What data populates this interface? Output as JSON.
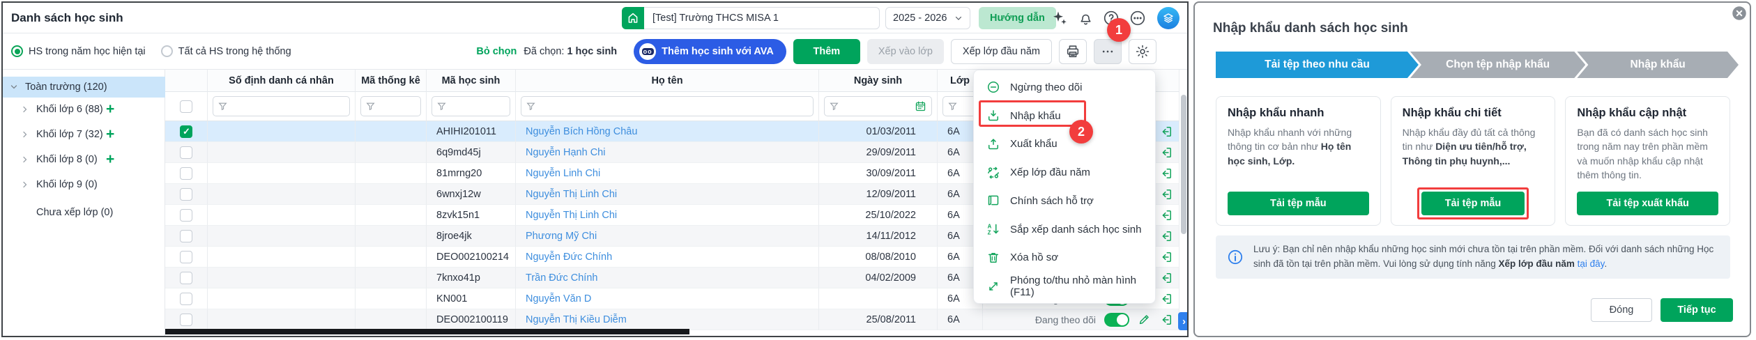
{
  "page_title": "Danh sách học sinh",
  "header": {
    "school": "[Test] Trường THCS MISA 1",
    "year": "2025 - 2026",
    "guide_button": "Hướng dẫn",
    "annotation_step1": "1"
  },
  "toolbar": {
    "radio_current_year": "HS trong năm học hiện tại",
    "radio_all_system": "Tất cả HS trong hệ thống",
    "deselect_link": "Bỏ chọn",
    "selected_label": "Đã chọn:",
    "selected_count": "1 học sinh",
    "ava_button": "Thêm học sinh với AVA",
    "add_button": "Thêm",
    "assign_class_button": "Xếp vào lớp",
    "start_year_button": "Xếp lớp đầu năm"
  },
  "sidebar": {
    "items": [
      {
        "label": "Toàn trường (120)"
      },
      {
        "label": "Khối lớp 6 (88)"
      },
      {
        "label": "Khối lớp 7 (32)"
      },
      {
        "label": "Khối lớp 8 (0)"
      },
      {
        "label": "Khối lớp 9 (0)"
      },
      {
        "label": "Chưa xếp lớp (0)"
      }
    ]
  },
  "table": {
    "columns": {
      "so_dinh_danh": "Số định danh cá nhân",
      "ma_thong_ke": "Mã thống kê",
      "ma_hoc_sinh": "Mã học sinh",
      "ho_ten": "Họ tên",
      "ngay_sinh": "Ngày sinh",
      "lop": "Lớp"
    },
    "rows": [
      {
        "so_dinh_danh": "",
        "ma_thong_ke": "",
        "ma_hoc_sinh": "AHIHI201011",
        "ho_ten": "Nguyễn Bích Hồng Châu",
        "ngay_sinh": "01/03/2011",
        "lop": "6A",
        "status": "Đang theo dõi",
        "selected": true,
        "checked": true
      },
      {
        "so_dinh_danh": "",
        "ma_thong_ke": "",
        "ma_hoc_sinh": "6q9md45j",
        "ho_ten": "Nguyễn Hạnh Chi",
        "ngay_sinh": "29/09/2011",
        "lop": "6A",
        "status": "Đang theo dõi"
      },
      {
        "so_dinh_danh": "",
        "ma_thong_ke": "",
        "ma_hoc_sinh": "81mrng20",
        "ho_ten": "Nguyễn Linh Chi",
        "ngay_sinh": "30/09/2011",
        "lop": "6A",
        "status": "Đang theo dõi"
      },
      {
        "so_dinh_danh": "",
        "ma_thong_ke": "",
        "ma_hoc_sinh": "6wnxj12w",
        "ho_ten": "Nguyễn Thị Linh Chi",
        "ngay_sinh": "12/09/2011",
        "lop": "6A",
        "status": "Đang theo dõi"
      },
      {
        "so_dinh_danh": "",
        "ma_thong_ke": "",
        "ma_hoc_sinh": "8zvk15n1",
        "ho_ten": "Nguyễn Thị Linh Chi",
        "ngay_sinh": "25/10/2022",
        "lop": "6A",
        "status": "Đang theo dõi"
      },
      {
        "so_dinh_danh": "",
        "ma_thong_ke": "",
        "ma_hoc_sinh": "8jroe4jk",
        "ho_ten": "Phương Mỹ Chi",
        "ngay_sinh": "14/11/2012",
        "lop": "6A",
        "status": "Đang theo dõi"
      },
      {
        "so_dinh_danh": "",
        "ma_thong_ke": "",
        "ma_hoc_sinh": "DEO002100214",
        "ho_ten": "Nguyễn Đức Chính",
        "ngay_sinh": "08/08/2010",
        "lop": "6A",
        "status": "Đang theo dõi"
      },
      {
        "so_dinh_danh": "",
        "ma_thong_ke": "",
        "ma_hoc_sinh": "7knxo41p",
        "ho_ten": "Trần Đức Chính",
        "ngay_sinh": "04/02/2009",
        "lop": "6A",
        "status": "Đang theo dõi"
      },
      {
        "so_dinh_danh": "",
        "ma_thong_ke": "",
        "ma_hoc_sinh": "KN001",
        "ho_ten": "Nguyễn Văn D",
        "ngay_sinh": "",
        "lop": "6A",
        "status": "Đang theo dõi"
      },
      {
        "so_dinh_danh": "",
        "ma_thong_ke": "",
        "ma_hoc_sinh": "DEO002100119",
        "ho_ten": "Nguyễn Thị Kiều Diễm",
        "ngay_sinh": "25/08/2011",
        "lop": "6A",
        "status": "Đang theo dõi"
      }
    ]
  },
  "menu": {
    "annotation_step2": "2",
    "items": [
      {
        "icon": "minus-circle-icon",
        "label": "Ngừng theo dõi"
      },
      {
        "icon": "import-icon",
        "label": "Nhập khẩu"
      },
      {
        "icon": "export-icon",
        "label": "Xuất khẩu"
      },
      {
        "icon": "people-swap-icon",
        "label": "Xếp lớp đầu năm"
      },
      {
        "icon": "policy-icon",
        "label": "Chính sách hỗ trợ"
      },
      {
        "icon": "sort-az-icon",
        "label": "Sắp xếp danh sách học sinh"
      },
      {
        "icon": "trash-icon",
        "label": "Xóa hồ sơ"
      },
      {
        "icon": "resize-icon",
        "label": "Phóng to/thu nhỏ màn hình (F11)"
      }
    ]
  },
  "modal": {
    "title": "Nhập khẩu danh sách học sinh",
    "steps": [
      {
        "label": "Tải tệp theo nhu cầu"
      },
      {
        "label": "Chọn tệp nhập khẩu"
      },
      {
        "label": "Nhập khẩu"
      }
    ],
    "cards": [
      {
        "title": "Nhập khẩu nhanh",
        "desc": "Nhập khẩu nhanh với những thông tin cơ bản như ",
        "desc_bold": "Họ tên học sinh, Lớp.",
        "button": "Tải tệp mẫu"
      },
      {
        "title": "Nhập khẩu chi tiết",
        "desc": "Nhập khẩu đầy đủ tất cả thông tin như ",
        "desc_bold": "Diện ưu tiên/hỗ trợ, Thông tin phụ huynh,...",
        "button": "Tải tệp mẫu"
      },
      {
        "title": "Nhập khẩu cập nhật",
        "desc": "Bạn đã có danh sách học sinh trong năm nay trên phần mềm và muốn nhập khẩu cập nhật thêm thông tin.",
        "desc_bold": "",
        "button": "Tải tệp xuất khẩu"
      }
    ],
    "note": {
      "text": "Lưu ý: Bạn chỉ nên nhập khẩu những học sinh mới chưa tồn tại trên phần mềm. Đối với danh sách những Học sinh đã tồn tại trên phần mềm. Vui lòng sử dụng tính năng ",
      "bold": "Xếp lớp đầu năm",
      "link": "tại đây",
      "suffix": "."
    },
    "close_button": "Đóng",
    "continue_button": "Tiếp tục"
  }
}
